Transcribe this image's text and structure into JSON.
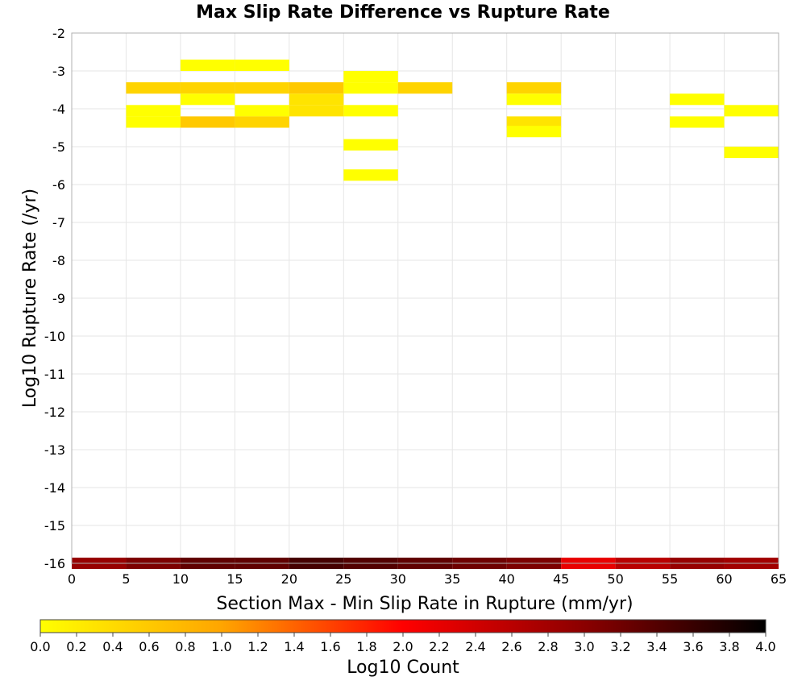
{
  "chart_data": {
    "type": "heatmap",
    "title": "Max Slip Rate Difference vs Rupture Rate",
    "xlabel": "Section Max - Min Slip Rate in Rupture (mm/yr)",
    "ylabel": "Log10 Rupture Rate (/yr)",
    "xlim": [
      0,
      65
    ],
    "ylim": [
      -16,
      -2
    ],
    "x_ticks": [
      0,
      5,
      10,
      15,
      20,
      25,
      30,
      35,
      40,
      45,
      50,
      55,
      60,
      65
    ],
    "y_ticks": [
      -2,
      -3,
      -4,
      -5,
      -6,
      -7,
      -8,
      -9,
      -10,
      -11,
      -12,
      -13,
      -14,
      -15,
      -16
    ],
    "grid": true,
    "x_bin_width": 5,
    "y_bin_height": 0.3,
    "colorbar": {
      "label": "Log10 Count",
      "range": [
        0,
        4
      ],
      "ticks": [
        "0.0",
        "0.2",
        "0.4",
        "0.6",
        "0.8",
        "1.0",
        "1.2",
        "1.4",
        "1.6",
        "1.8",
        "2.0",
        "2.2",
        "2.4",
        "2.6",
        "2.8",
        "3.0",
        "3.2",
        "3.4",
        "3.6",
        "3.8",
        "4.0"
      ],
      "colors": [
        "#ffff00",
        "#ffa500",
        "#ff0000",
        "#8b0000",
        "#000000"
      ]
    },
    "cells": [
      {
        "x": 10,
        "y": -2.85,
        "value": 0.0
      },
      {
        "x": 15,
        "y": -2.85,
        "value": 0.0
      },
      {
        "x": 5,
        "y": -3.45,
        "value": 0.48
      },
      {
        "x": 10,
        "y": -3.45,
        "value": 0.48
      },
      {
        "x": 15,
        "y": -3.45,
        "value": 0.48
      },
      {
        "x": 20,
        "y": -3.45,
        "value": 0.6
      },
      {
        "x": 10,
        "y": -3.75,
        "value": 0.0
      },
      {
        "x": 20,
        "y": -3.75,
        "value": 0.3
      },
      {
        "x": 5,
        "y": -4.05,
        "value": 0.0
      },
      {
        "x": 15,
        "y": -4.05,
        "value": 0.0
      },
      {
        "x": 20,
        "y": -4.05,
        "value": 0.3
      },
      {
        "x": 5,
        "y": -4.35,
        "value": 0.0
      },
      {
        "x": 10,
        "y": -4.35,
        "value": 0.6
      },
      {
        "x": 15,
        "y": -4.35,
        "value": 0.48
      },
      {
        "x": 25,
        "y": -3.15,
        "value": 0.0
      },
      {
        "x": 25,
        "y": -3.45,
        "value": 0.0
      },
      {
        "x": 30,
        "y": -3.45,
        "value": 0.48
      },
      {
        "x": 25,
        "y": -4.05,
        "value": 0.0
      },
      {
        "x": 25,
        "y": -4.95,
        "value": 0.0
      },
      {
        "x": 25,
        "y": -5.75,
        "value": 0.0
      },
      {
        "x": 40,
        "y": -3.45,
        "value": 0.48
      },
      {
        "x": 40,
        "y": -3.75,
        "value": 0.0
      },
      {
        "x": 40,
        "y": -4.35,
        "value": 0.3
      },
      {
        "x": 40,
        "y": -4.6,
        "value": 0.0
      },
      {
        "x": 55,
        "y": -3.75,
        "value": 0.0
      },
      {
        "x": 55,
        "y": -4.35,
        "value": 0.0
      },
      {
        "x": 60,
        "y": -4.05,
        "value": 0.0
      },
      {
        "x": 60,
        "y": -5.15,
        "value": 0.0
      },
      {
        "x": 0,
        "y": -16,
        "value": 2.9
      },
      {
        "x": 5,
        "y": -16,
        "value": 3.1
      },
      {
        "x": 10,
        "y": -16,
        "value": 3.3
      },
      {
        "x": 15,
        "y": -16,
        "value": 3.3
      },
      {
        "x": 20,
        "y": -16,
        "value": 3.5
      },
      {
        "x": 25,
        "y": -16,
        "value": 3.4
      },
      {
        "x": 30,
        "y": -16,
        "value": 3.3
      },
      {
        "x": 35,
        "y": -16,
        "value": 3.2
      },
      {
        "x": 40,
        "y": -16,
        "value": 3.1
      },
      {
        "x": 45,
        "y": -16,
        "value": 2.2
      },
      {
        "x": 50,
        "y": -16,
        "value": 2.6
      },
      {
        "x": 55,
        "y": -16,
        "value": 2.9
      },
      {
        "x": 60,
        "y": -16,
        "value": 2.8
      }
    ]
  }
}
